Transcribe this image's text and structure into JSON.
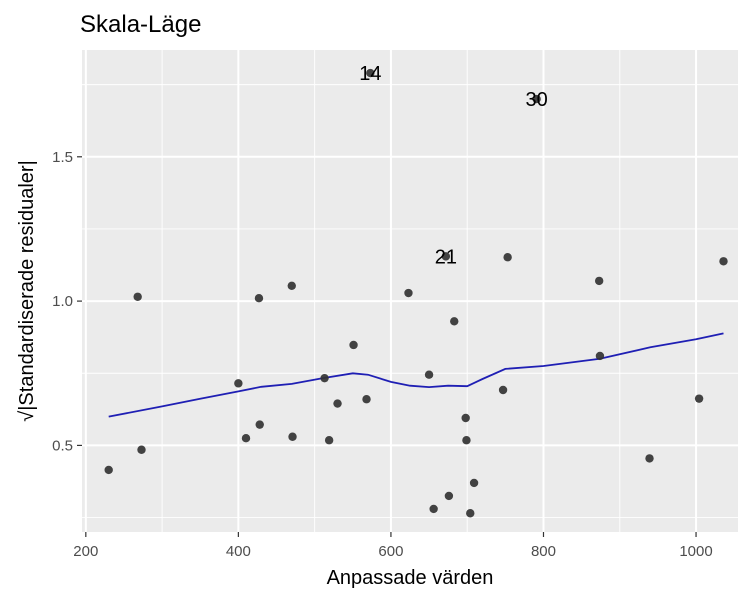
{
  "chart_data": {
    "type": "scatter",
    "title": "Skala-Läge",
    "xlabel": "Anpassade värden",
    "ylabel": "√|Standardiserade residualer|",
    "xlim": [
      195,
      1055
    ],
    "ylim": [
      0.2,
      1.87
    ],
    "x_ticks": [
      200,
      400,
      600,
      800,
      1000
    ],
    "x_tick_labels": [
      "200",
      "400",
      "600",
      "800",
      "1000"
    ],
    "y_ticks": [
      0.5,
      1.0,
      1.5
    ],
    "y_tick_labels": [
      "0.5",
      "1.0",
      "1.5"
    ],
    "grid": true,
    "background": "#ebebeb",
    "point_color": "#333333",
    "smooth_color": "#1f1fb4",
    "points": [
      {
        "x": 230,
        "y": 0.415
      },
      {
        "x": 268,
        "y": 1.015
      },
      {
        "x": 273,
        "y": 0.485
      },
      {
        "x": 400,
        "y": 0.715
      },
      {
        "x": 410,
        "y": 0.525
      },
      {
        "x": 427,
        "y": 1.01
      },
      {
        "x": 428,
        "y": 0.572
      },
      {
        "x": 470,
        "y": 1.053
      },
      {
        "x": 471,
        "y": 0.53
      },
      {
        "x": 513,
        "y": 0.733
      },
      {
        "x": 519,
        "y": 0.518
      },
      {
        "x": 530,
        "y": 0.645
      },
      {
        "x": 551,
        "y": 0.848
      },
      {
        "x": 568,
        "y": 0.66
      },
      {
        "x": 573,
        "y": 1.79
      },
      {
        "x": 623,
        "y": 1.028
      },
      {
        "x": 650,
        "y": 0.745
      },
      {
        "x": 656,
        "y": 0.28
      },
      {
        "x": 672,
        "y": 1.155
      },
      {
        "x": 676,
        "y": 0.325
      },
      {
        "x": 683,
        "y": 0.93
      },
      {
        "x": 698,
        "y": 0.595
      },
      {
        "x": 699,
        "y": 0.518
      },
      {
        "x": 704,
        "y": 0.265
      },
      {
        "x": 709,
        "y": 0.37
      },
      {
        "x": 747,
        "y": 0.692
      },
      {
        "x": 753,
        "y": 1.152
      },
      {
        "x": 791,
        "y": 1.7
      },
      {
        "x": 873,
        "y": 1.07
      },
      {
        "x": 874,
        "y": 0.81
      },
      {
        "x": 939,
        "y": 0.455
      },
      {
        "x": 1004,
        "y": 0.662
      },
      {
        "x": 1036,
        "y": 1.138
      }
    ],
    "point_labels": [
      {
        "text": "14",
        "x": 573,
        "y": 1.79
      },
      {
        "text": "30",
        "x": 791,
        "y": 1.7
      },
      {
        "text": "21",
        "x": 672,
        "y": 1.155
      }
    ],
    "smooth_line": [
      {
        "x": 230,
        "y": 0.6
      },
      {
        "x": 300,
        "y": 0.635
      },
      {
        "x": 350,
        "y": 0.662
      },
      {
        "x": 400,
        "y": 0.687
      },
      {
        "x": 430,
        "y": 0.703
      },
      {
        "x": 470,
        "y": 0.713
      },
      {
        "x": 510,
        "y": 0.733
      },
      {
        "x": 550,
        "y": 0.75
      },
      {
        "x": 570,
        "y": 0.745
      },
      {
        "x": 600,
        "y": 0.72
      },
      {
        "x": 625,
        "y": 0.707
      },
      {
        "x": 650,
        "y": 0.702
      },
      {
        "x": 675,
        "y": 0.707
      },
      {
        "x": 700,
        "y": 0.705
      },
      {
        "x": 720,
        "y": 0.73
      },
      {
        "x": 750,
        "y": 0.765
      },
      {
        "x": 800,
        "y": 0.775
      },
      {
        "x": 874,
        "y": 0.8
      },
      {
        "x": 940,
        "y": 0.84
      },
      {
        "x": 1000,
        "y": 0.868
      },
      {
        "x": 1036,
        "y": 0.888
      }
    ]
  }
}
